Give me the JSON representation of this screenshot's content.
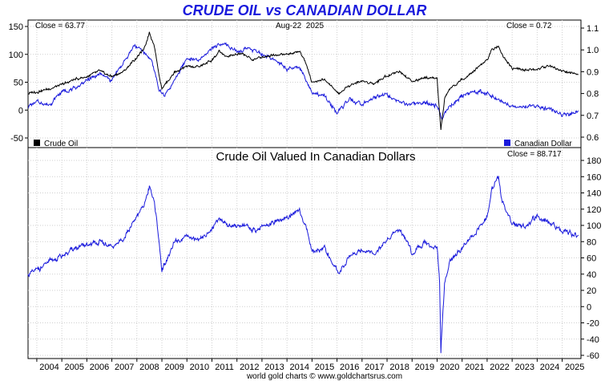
{
  "title": "CRUDE OIL vs CANADIAN DOLLAR",
  "footer": "world gold charts © www.goldchartsrus.com",
  "colors": {
    "title": "#1a1adc",
    "oil": "#000000",
    "cad": "#1a1adc",
    "grid": "#cfcfcf",
    "axis": "#000000"
  },
  "chart_data": [
    {
      "type": "line",
      "date_label": "Aug-22  2025",
      "left_close": "Close = 63.77",
      "right_close": "Close = 0.72",
      "legend": [
        "Crude Oil",
        "Canadian Dollar"
      ],
      "left_ylim": [
        -50,
        150
      ],
      "left_ticks": [
        "150",
        "100",
        "50",
        "0",
        "-50"
      ],
      "right_ylim": [
        0.6,
        1.1
      ],
      "right_ticks": [
        "1.1",
        "1.0",
        "0.9",
        "0.8",
        "0.7",
        "0.6"
      ],
      "grid": true,
      "series": [
        {
          "name": "Crude Oil",
          "x": [
            2003.65,
            2004.0,
            2004.5,
            2005.0,
            2005.5,
            2006.0,
            2006.5,
            2007.0,
            2007.5,
            2008.0,
            2008.3,
            2008.5,
            2008.7,
            2008.9,
            2009.0,
            2009.2,
            2009.5,
            2010.0,
            2010.5,
            2011.0,
            2011.3,
            2011.6,
            2012.0,
            2012.3,
            2012.6,
            2013.0,
            2013.5,
            2014.0,
            2014.5,
            2014.8,
            2015.0,
            2015.5,
            2016.0,
            2016.1,
            2016.5,
            2017.0,
            2017.5,
            2018.0,
            2018.5,
            2018.9,
            2019.0,
            2019.5,
            2020.0,
            2020.15,
            2020.3,
            2020.5,
            2021.0,
            2021.5,
            2022.0,
            2022.2,
            2022.45,
            2022.6,
            2023.0,
            2023.5,
            2024.0,
            2024.5,
            2025.0,
            2025.65
          ],
          "y": [
            30,
            33,
            38,
            45,
            55,
            60,
            70,
            60,
            70,
            95,
            110,
            140,
            115,
            60,
            40,
            50,
            68,
            78,
            78,
            90,
            105,
            95,
            100,
            100,
            90,
            95,
            100,
            100,
            105,
            80,
            50,
            55,
            33,
            30,
            45,
            52,
            48,
            62,
            70,
            55,
            50,
            58,
            55,
            -35,
            20,
            38,
            55,
            72,
            90,
            110,
            115,
            100,
            75,
            72,
            73,
            80,
            70,
            64
          ]
        },
        {
          "name": "Canadian Dollar",
          "x": [
            2003.65,
            2004.0,
            2004.5,
            2005.0,
            2005.5,
            2006.0,
            2006.5,
            2007.0,
            2007.5,
            2007.9,
            2008.3,
            2008.6,
            2008.9,
            2009.1,
            2009.5,
            2010.0,
            2010.5,
            2011.0,
            2011.5,
            2012.0,
            2012.5,
            2013.0,
            2013.5,
            2014.0,
            2014.5,
            2015.0,
            2015.5,
            2016.0,
            2016.5,
            2017.0,
            2017.5,
            2018.0,
            2018.5,
            2019.0,
            2019.5,
            2020.0,
            2020.2,
            2020.5,
            2021.0,
            2021.5,
            2022.0,
            2022.5,
            2023.0,
            2023.5,
            2024.0,
            2024.5,
            2025.0,
            2025.65
          ],
          "y": [
            0.74,
            0.76,
            0.75,
            0.81,
            0.82,
            0.86,
            0.89,
            0.86,
            0.95,
            1.02,
            0.99,
            0.95,
            0.81,
            0.79,
            0.86,
            0.96,
            0.95,
            1.01,
            1.03,
            0.99,
            1.01,
            0.98,
            0.96,
            0.91,
            0.92,
            0.8,
            0.79,
            0.71,
            0.77,
            0.75,
            0.78,
            0.8,
            0.76,
            0.75,
            0.76,
            0.74,
            0.69,
            0.74,
            0.79,
            0.81,
            0.8,
            0.77,
            0.74,
            0.74,
            0.74,
            0.73,
            0.7,
            0.72
          ]
        }
      ]
    },
    {
      "type": "line",
      "title": "Crude Oil Valued In Canadian Dollars",
      "right_close": "Close = 88.717",
      "ylim": [
        -60,
        180
      ],
      "yticks": [
        "180",
        "160",
        "140",
        "120",
        "100",
        "80",
        "60",
        "40",
        "20",
        "0",
        "-20",
        "-40",
        "-60"
      ],
      "xticks": [
        "2004",
        "2005",
        "2006",
        "2007",
        "2008",
        "2009",
        "2010",
        "2011",
        "2012",
        "2013",
        "2014",
        "2015",
        "2016",
        "2017",
        "2018",
        "2019",
        "2020",
        "2021",
        "2022",
        "2023",
        "2024",
        "2025"
      ],
      "grid": true,
      "series": [
        {
          "name": "",
          "x": [
            2003.65,
            2004.0,
            2004.5,
            2005.0,
            2005.5,
            2006.0,
            2006.5,
            2007.0,
            2007.5,
            2008.0,
            2008.3,
            2008.5,
            2008.7,
            2008.9,
            2009.0,
            2009.2,
            2009.5,
            2010.0,
            2010.5,
            2011.0,
            2011.3,
            2011.6,
            2012.0,
            2012.3,
            2012.6,
            2013.0,
            2013.5,
            2014.0,
            2014.5,
            2014.8,
            2015.0,
            2015.5,
            2016.0,
            2016.1,
            2016.5,
            2017.0,
            2017.5,
            2018.0,
            2018.5,
            2018.9,
            2019.0,
            2019.5,
            2020.0,
            2020.1,
            2020.15,
            2020.3,
            2020.5,
            2021.0,
            2021.5,
            2022.0,
            2022.2,
            2022.45,
            2022.6,
            2023.0,
            2023.5,
            2024.0,
            2024.5,
            2025.0,
            2025.65
          ],
          "y": [
            39,
            45,
            55,
            62,
            72,
            75,
            80,
            72,
            85,
            110,
            125,
            148,
            130,
            75,
            45,
            58,
            78,
            85,
            82,
            95,
            110,
            100,
            100,
            102,
            92,
            98,
            105,
            110,
            118,
            95,
            68,
            72,
            45,
            42,
            62,
            70,
            65,
            82,
            95,
            75,
            65,
            78,
            72,
            30,
            -55,
            30,
            55,
            72,
            90,
            110,
            145,
            160,
            130,
            102,
            98,
            112,
            102,
            92,
            88
          ]
        }
      ]
    }
  ]
}
